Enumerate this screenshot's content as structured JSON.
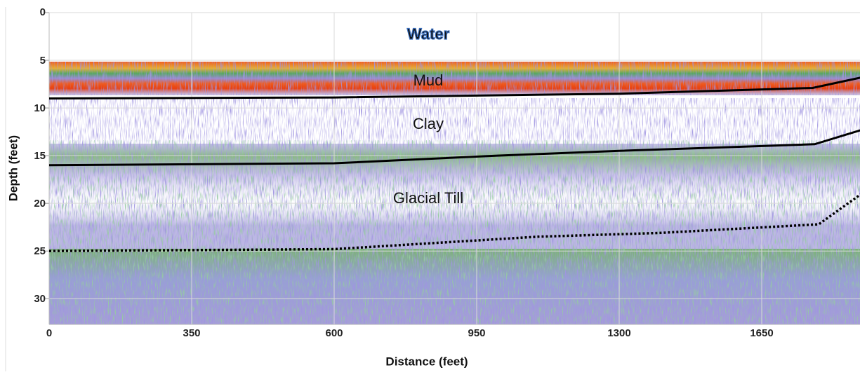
{
  "chart_data": {
    "type": "profile",
    "xlabel": "Distance (feet)",
    "ylabel": "Depth (feet)",
    "xlim": [
      0,
      1895
    ],
    "ylim": [
      0,
      32.7
    ],
    "y_inverted": true,
    "xticks": [
      0,
      350,
      600,
      950,
      1300,
      1650
    ],
    "yticks": [
      0,
      5,
      10,
      15,
      20,
      25,
      30
    ],
    "grid": true,
    "annotations": [
      "Water",
      "Mud",
      "Clay",
      "Glacial Till"
    ],
    "lines": [
      {
        "style": "solid",
        "color": "#000000",
        "x": [
          0,
          600,
          1300,
          1775,
          1895
        ],
        "values": [
          9.0,
          8.9,
          8.5,
          7.9,
          6.8
        ]
      },
      {
        "style": "solid",
        "color": "#000000",
        "x": [
          0,
          600,
          1000,
          1300,
          1780,
          1895
        ],
        "values": [
          16.0,
          15.8,
          15.0,
          14.5,
          13.8,
          12.3
        ]
      },
      {
        "style": "dotted",
        "color": "#000000",
        "x": [
          0,
          600,
          1100,
          1400,
          1790,
          1895
        ],
        "values": [
          25.0,
          24.8,
          23.5,
          23.1,
          22.2,
          19.0
        ]
      }
    ]
  }
}
